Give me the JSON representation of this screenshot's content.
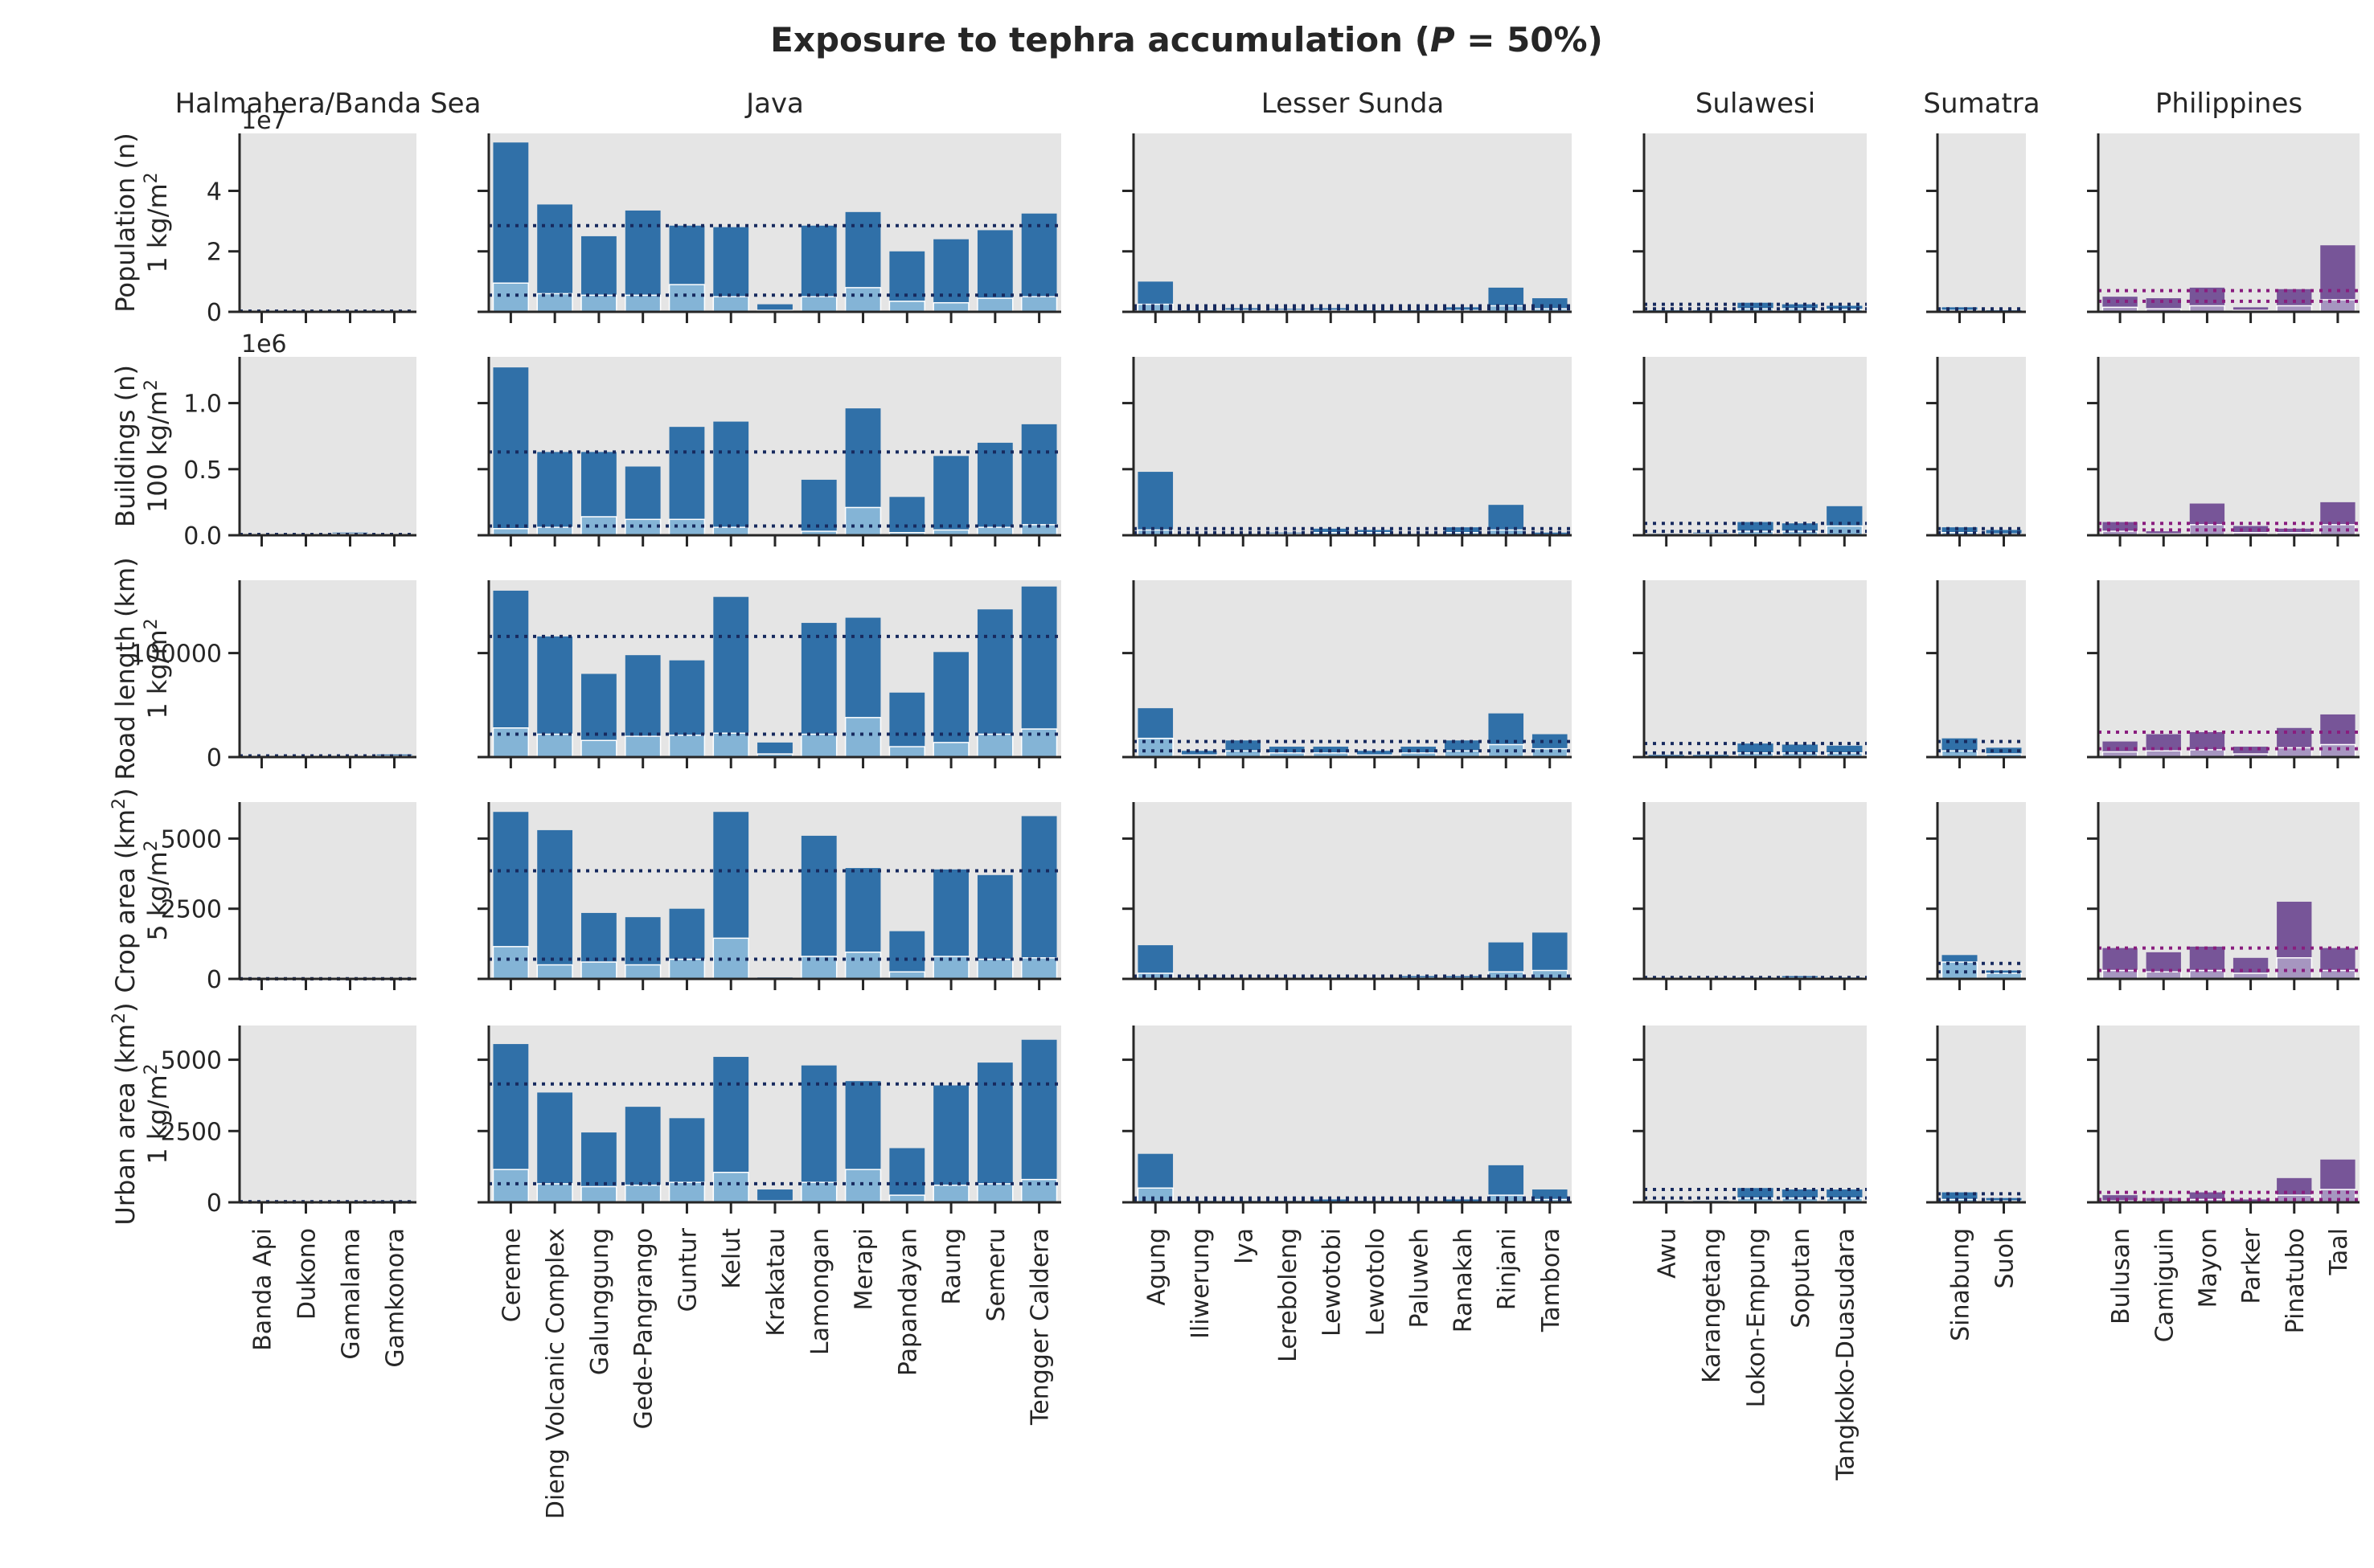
{
  "title_main": "Exposure to tephra accumulation (",
  "title_var": "P",
  "title_rest": " = 50%)",
  "colors": {
    "panel_bg": "#e5e5e5",
    "blue": "#3070a8",
    "blue_light": "#84b4d6",
    "blue_line": "#172a5e",
    "purple": "#775598",
    "purple_light": "#a696c0",
    "purple_line": "#891d7e"
  },
  "chart_data": {
    "type": "bar",
    "regions": [
      {
        "name": "Halmahera/Banda Sea",
        "color": "blue",
        "volcanoes": [
          "Banda Api",
          "Dukono",
          "Gamalama",
          "Gamkonora"
        ]
      },
      {
        "name": "Java",
        "color": "blue",
        "volcanoes": [
          "Cereme",
          "Dieng Volcanic Complex",
          "Galunggung",
          "Gede-Pangrango",
          "Guntur",
          "Kelut",
          "Krakatau",
          "Lamongan",
          "Merapi",
          "Papandayan",
          "Raung",
          "Semeru",
          "Tengger Caldera"
        ]
      },
      {
        "name": "Lesser Sunda",
        "color": "blue",
        "volcanoes": [
          "Agung",
          "Iliwerung",
          "Iya",
          "Lereboleng",
          "Lewotobi",
          "Lewotolo",
          "Paluweh",
          "Ranakah",
          "Rinjani",
          "Tambora"
        ]
      },
      {
        "name": "Sulawesi",
        "color": "blue",
        "volcanoes": [
          "Awu",
          "Karangetang",
          "Lokon-Empung",
          "Soputan",
          "Tangkoko-Duasudara"
        ]
      },
      {
        "name": "Sumatra",
        "color": "blue",
        "volcanoes": [
          "Sinabung",
          "Suoh"
        ]
      },
      {
        "name": "Philippines",
        "color": "purple",
        "volcanoes": [
          "Bulusan",
          "Camiguin",
          "Mayon",
          "Parker",
          "Pinatubo",
          "Taal"
        ]
      }
    ],
    "rows": [
      {
        "ylabel1": "Population (n)",
        "ylabel2": "1 kg/m",
        "ylabel_sup": "2",
        "offset": "1e7",
        "ylim": [
          0,
          5.9
        ],
        "ticks": [
          0,
          2,
          4
        ],
        "tick_labels": [
          "0",
          "2",
          "4"
        ],
        "panels": [
          {
            "totals": [
              0.02,
              0.02,
              0.02,
              0.02
            ],
            "parts": [
              0.01,
              0.01,
              0.01,
              0.01
            ],
            "mean_line": 0.02,
            "median_line": 0.02
          },
          {
            "totals": [
              5.6,
              3.55,
              2.5,
              3.35,
              2.85,
              2.8,
              0.25,
              2.85,
              3.3,
              2.0,
              2.4,
              2.7,
              3.25
            ],
            "parts": [
              0.95,
              0.6,
              0.55,
              0.55,
              0.9,
              0.5,
              0.05,
              0.5,
              0.8,
              0.35,
              0.3,
              0.45,
              0.5
            ],
            "mean_line": 2.85,
            "median_line": 0.55
          },
          {
            "totals": [
              1.0,
              0.05,
              0.12,
              0.1,
              0.12,
              0.05,
              0.05,
              0.15,
              0.8,
              0.45
            ],
            "parts": [
              0.25,
              0.02,
              0.05,
              0.05,
              0.05,
              0.02,
              0.02,
              0.05,
              0.2,
              0.1
            ],
            "mean_line": 0.2,
            "median_line": 0.1
          },
          {
            "totals": [
              0.05,
              0.05,
              0.3,
              0.25,
              0.2
            ],
            "parts": [
              0.02,
              0.02,
              0.1,
              0.1,
              0.08
            ],
            "mean_line": 0.25,
            "median_line": 0.1
          },
          {
            "totals": [
              0.15,
              0.05
            ],
            "parts": [
              0.05,
              0.02
            ],
            "mean_line": 0.1,
            "median_line": 0.05
          },
          {
            "totals": [
              0.5,
              0.45,
              0.8,
              0.15,
              0.75,
              2.2
            ],
            "parts": [
              0.15,
              0.1,
              0.2,
              0.05,
              0.2,
              0.4
            ],
            "mean_line": 0.7,
            "median_line": 0.35
          }
        ]
      },
      {
        "ylabel1": "Buildings (n)",
        "ylabel2": "100 kg/m",
        "ylabel_sup": "2",
        "offset": "1e6",
        "ylim": [
          0,
          1.35
        ],
        "ticks": [
          0,
          0.5,
          1.0
        ],
        "tick_labels": [
          "0.0",
          "0.5",
          "1.0"
        ],
        "panels": [
          {
            "totals": [
              0.005,
              0.005,
              0.02,
              0.005
            ],
            "parts": [
              0.002,
              0.002,
              0.01,
              0.002
            ],
            "mean_line": 0.005,
            "median_line": 0.005
          },
          {
            "totals": [
              1.27,
              0.63,
              0.63,
              0.52,
              0.82,
              0.86,
              0.0,
              0.42,
              0.96,
              0.29,
              0.6,
              0.7,
              0.84
            ],
            "parts": [
              0.05,
              0.06,
              0.14,
              0.12,
              0.12,
              0.06,
              0.0,
              0.03,
              0.21,
              0.02,
              0.04,
              0.06,
              0.08
            ],
            "mean_line": 0.63,
            "median_line": 0.07
          },
          {
            "totals": [
              0.48,
              0.01,
              0.01,
              0.02,
              0.05,
              0.04,
              0.01,
              0.06,
              0.23,
              0.02
            ],
            "parts": [
              0.04,
              0.005,
              0.005,
              0.01,
              0.02,
              0.02,
              0.005,
              0.02,
              0.04,
              0.005
            ],
            "mean_line": 0.05,
            "median_line": 0.02
          },
          {
            "totals": [
              0.01,
              0.02,
              0.1,
              0.09,
              0.22
            ],
            "parts": [
              0.005,
              0.01,
              0.03,
              0.03,
              0.07
            ],
            "mean_line": 0.09,
            "median_line": 0.03
          },
          {
            "totals": [
              0.06,
              0.04
            ],
            "parts": [
              0.02,
              0.01
            ],
            "mean_line": 0.05,
            "median_line": 0.02
          },
          {
            "totals": [
              0.1,
              0.03,
              0.24,
              0.07,
              0.05,
              0.25
            ],
            "parts": [
              0.03,
              0.01,
              0.08,
              0.02,
              0.02,
              0.08
            ],
            "mean_line": 0.09,
            "median_line": 0.04
          }
        ]
      },
      {
        "ylabel1": "Road length (km)",
        "ylabel2": "1 kg/m",
        "ylabel_sup": "2",
        "offset": "",
        "ylim": [
          0,
          170000
        ],
        "ticks": [
          0,
          100000
        ],
        "tick_labels": [
          "0",
          "100000"
        ],
        "panels": [
          {
            "totals": [
              1000,
              500,
              500,
              2500
            ],
            "parts": [
              500,
              200,
              200,
              1000
            ],
            "mean_line": 1200,
            "median_line": 600
          },
          {
            "totals": [
              160000,
              116000,
              80000,
              98000,
              93000,
              154000,
              14000,
              129000,
              134000,
              62000,
              101000,
              142000,
              164000
            ],
            "parts": [
              28000,
              22000,
              16000,
              20000,
              21000,
              23000,
              3000,
              22000,
              38000,
              10000,
              14000,
              22000,
              27000
            ],
            "mean_line": 116000,
            "median_line": 22000
          },
          {
            "totals": [
              47000,
              6000,
              16000,
              10000,
              10000,
              6000,
              10000,
              16000,
              42000,
              22000
            ],
            "parts": [
              18000,
              2000,
              6000,
              4000,
              4000,
              2000,
              4000,
              6000,
              12000,
              8000
            ],
            "mean_line": 15000,
            "median_line": 6000
          },
          {
            "totals": [
              2000,
              2000,
              13000,
              12000,
              11000
            ],
            "parts": [
              500,
              500,
              4000,
              4000,
              4000
            ],
            "mean_line": 13000,
            "median_line": 4000
          },
          {
            "totals": [
              18000,
              9000
            ],
            "parts": [
              6000,
              3000
            ],
            "mean_line": 15000,
            "median_line": 6000
          },
          {
            "totals": [
              15000,
              22000,
              24000,
              10000,
              28000,
              41000
            ],
            "parts": [
              5000,
              6000,
              7000,
              3000,
              9000,
              12000
            ],
            "mean_line": 24000,
            "median_line": 8000
          }
        ]
      },
      {
        "ylabel1": "Crop area (km",
        "ylabel1_sup": "2",
        "ylabel1_end": ")",
        "ylabel2": "5 kg/m",
        "ylabel_sup": "2",
        "offset": "",
        "ylim": [
          0,
          6300
        ],
        "ticks": [
          0,
          2500,
          5000
        ],
        "tick_labels": [
          "0",
          "2500",
          "5000"
        ],
        "panels": [
          {
            "totals": [
              5,
              5,
              5,
              5
            ],
            "parts": [
              2,
              2,
              2,
              2
            ],
            "mean_line": 5,
            "median_line": 5
          },
          {
            "totals": [
              5950,
              5300,
              2350,
              2200,
              2500,
              5950,
              50,
              5100,
              3950,
              1700,
              3900,
              3700,
              5800
            ],
            "parts": [
              1150,
              500,
              600,
              500,
              700,
              1450,
              10,
              800,
              950,
              250,
              800,
              700,
              750
            ],
            "mean_line": 3850,
            "median_line": 700
          },
          {
            "totals": [
              1200,
              50,
              30,
              30,
              50,
              30,
              100,
              100,
              1300,
              1650
            ],
            "parts": [
              200,
              10,
              10,
              10,
              20,
              10,
              30,
              30,
              250,
              300
            ],
            "mean_line": 100,
            "median_line": 40
          },
          {
            "totals": [
              30,
              30,
              50,
              100,
              50
            ],
            "parts": [
              10,
              10,
              20,
              30,
              20
            ],
            "mean_line": 50,
            "median_line": 20
          },
          {
            "totals": [
              850,
              300
            ],
            "parts": [
              600,
              200
            ],
            "mean_line": 550,
            "median_line": 250
          },
          {
            "totals": [
              1100,
              950,
              1150,
              750,
              2750,
              1100
            ],
            "parts": [
              300,
              250,
              300,
              200,
              750,
              300
            ],
            "mean_line": 1100,
            "median_line": 300
          }
        ]
      },
      {
        "ylabel1": "Urban area (km",
        "ylabel1_sup": "2",
        "ylabel1_end": ")",
        "ylabel2": "1 kg/m",
        "ylabel_sup": "2",
        "offset": "",
        "ylim": [
          0,
          6200
        ],
        "ticks": [
          0,
          2500,
          5000
        ],
        "tick_labels": [
          "0",
          "2500",
          "5000"
        ],
        "panels": [
          {
            "totals": [
              10,
              5,
              5,
              50
            ],
            "parts": [
              5,
              2,
              2,
              20
            ],
            "mean_line": 20,
            "median_line": 10
          },
          {
            "totals": [
              5550,
              3850,
              2450,
              3350,
              2950,
              5100,
              450,
              4800,
              4250,
              1900,
              4100,
              4900,
              5700
            ],
            "parts": [
              1150,
              650,
              550,
              600,
              700,
              1050,
              50,
              700,
              1150,
              250,
              600,
              650,
              800
            ],
            "mean_line": 4150,
            "median_line": 650
          },
          {
            "totals": [
              1700,
              50,
              50,
              50,
              100,
              50,
              50,
              100,
              1300,
              450
            ],
            "parts": [
              500,
              10,
              10,
              10,
              20,
              10,
              10,
              20,
              250,
              100
            ],
            "mean_line": 150,
            "median_line": 50
          },
          {
            "totals": [
              50,
              50,
              500,
              450,
              450
            ],
            "parts": [
              20,
              20,
              150,
              150,
              150
            ],
            "mean_line": 450,
            "median_line": 150
          },
          {
            "totals": [
              350,
              150
            ],
            "parts": [
              100,
              50
            ],
            "mean_line": 300,
            "median_line": 100
          },
          {
            "totals": [
              250,
              150,
              350,
              100,
              850,
              1500
            ],
            "parts": [
              50,
              30,
              100,
              20,
              250,
              450
            ],
            "mean_line": 350,
            "median_line": 100
          }
        ]
      }
    ]
  }
}
